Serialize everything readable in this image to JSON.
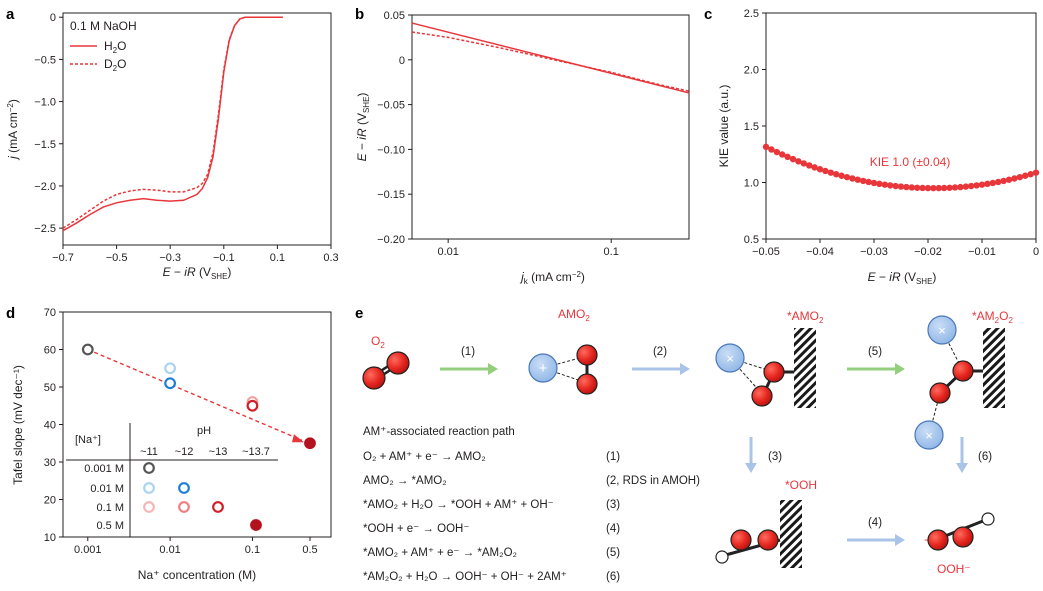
{
  "panel_letters": [
    "a",
    "b",
    "c",
    "d",
    "e"
  ],
  "colors": {
    "red": "#e8363a",
    "dark_red": "#b3121f",
    "blue_atom": "#a8c8ee",
    "green_arrow": "#93cf7c",
    "blue_arrow": "#a9c4e6"
  },
  "chart_data": [
    {
      "panel": "a",
      "type": "line",
      "xlabel": "E − iR (V_SHE)",
      "ylabel": "j (mA cm⁻²)",
      "xlim": [
        -0.7,
        0.3
      ],
      "ylim": [
        -2.7,
        0.05
      ],
      "xticks": [
        "−0.7",
        "−0.5",
        "−0.3",
        "−0.1",
        "0.1",
        "0.3"
      ],
      "yticks": [
        "0",
        "−0.5",
        "−1.0",
        "−1.5",
        "−2.0",
        "−2.5"
      ],
      "legend_title": "0.1 M NaOH",
      "series": [
        {
          "name": "H2O",
          "label_main": "H",
          "label_sub": "2",
          "label_end": "O",
          "style": "solid",
          "x": [
            -0.7,
            -0.65,
            -0.6,
            -0.55,
            -0.5,
            -0.45,
            -0.4,
            -0.35,
            -0.3,
            -0.25,
            -0.2,
            -0.18,
            -0.16,
            -0.14,
            -0.12,
            -0.1,
            -0.08,
            -0.06,
            -0.04,
            -0.02,
            0.0,
            0.12
          ],
          "y": [
            -2.53,
            -2.44,
            -2.34,
            -2.25,
            -2.2,
            -2.17,
            -2.15,
            -2.17,
            -2.18,
            -2.17,
            -2.1,
            -2.03,
            -1.9,
            -1.65,
            -1.2,
            -0.65,
            -0.28,
            -0.1,
            -0.02,
            0.0,
            0.0,
            0.0
          ]
        },
        {
          "name": "D2O",
          "label_main": "D",
          "label_sub": "2",
          "label_end": "O",
          "style": "dashed",
          "x": [
            -0.7,
            -0.65,
            -0.6,
            -0.55,
            -0.5,
            -0.45,
            -0.4,
            -0.35,
            -0.3,
            -0.25,
            -0.2,
            -0.18,
            -0.16,
            -0.14,
            -0.12,
            -0.1,
            -0.08,
            -0.06,
            -0.04,
            -0.02,
            0.0,
            0.12
          ],
          "y": [
            -2.5,
            -2.4,
            -2.29,
            -2.18,
            -2.1,
            -2.06,
            -2.04,
            -2.05,
            -2.07,
            -2.07,
            -2.02,
            -1.97,
            -1.86,
            -1.6,
            -1.15,
            -0.62,
            -0.27,
            -0.1,
            -0.02,
            0.0,
            0.0,
            0.0
          ]
        }
      ]
    },
    {
      "panel": "b",
      "type": "line",
      "xlabel": "j_k (mA cm⁻²)",
      "ylabel": "E − iR (V_SHE)",
      "xscale": "log",
      "xlim": [
        0.006,
        0.3
      ],
      "ylim": [
        -0.2,
        0.05
      ],
      "xticks": [
        "0.01",
        "0.1"
      ],
      "yticks": [
        "0.05",
        "0",
        "−0.05",
        "−0.10",
        "−0.15",
        "−0.20"
      ],
      "series": [
        {
          "name": "H2O",
          "style": "solid",
          "x": [
            0.006,
            0.3
          ],
          "y": [
            0.041,
            -0.037
          ]
        },
        {
          "name": "D2O",
          "style": "dashed",
          "x": [
            0.006,
            0.01,
            0.02,
            0.05,
            0.1,
            0.2,
            0.3
          ],
          "y": [
            0.031,
            0.025,
            0.014,
            -0.002,
            -0.014,
            -0.028,
            -0.035
          ]
        }
      ]
    },
    {
      "panel": "c",
      "type": "scatter",
      "xlabel": "E − iR (V_SHE)",
      "ylabel": "KIE value (a.u.)",
      "xlim": [
        -0.05,
        0.0
      ],
      "ylim": [
        0.5,
        2.5
      ],
      "xticks": [
        "−0.05",
        "−0.04",
        "−0.03",
        "−0.02",
        "−0.01",
        "0"
      ],
      "yticks": [
        "2.5",
        "2.0",
        "1.5",
        "1.0",
        "0.5"
      ],
      "annotation": "KIE 1.0 (±0.04)",
      "curve": "y = 0.95 + 380 * (x + 0.019)^2 (sampled every 0.001 V from −0.05 to 0)"
    },
    {
      "panel": "d",
      "type": "scatter",
      "xlabel": "Na⁺ concentration (M)",
      "ylabel": "Tafel slope (mV dec⁻¹)",
      "xscale": "log",
      "xlim": [
        0.0005,
        0.9
      ],
      "ylim": [
        10,
        70
      ],
      "xticks": [
        "0.001",
        "0.01",
        "0.1",
        "0.5"
      ],
      "yticks": [
        "70",
        "60",
        "50",
        "40",
        "30",
        "20",
        "10"
      ],
      "points": [
        {
          "x": 0.001,
          "y": 60,
          "color": "#555555",
          "filled": false
        },
        {
          "x": 0.01,
          "y": 55,
          "color": "#a9d3f3",
          "filled": false
        },
        {
          "x": 0.01,
          "y": 51,
          "color": "#1f7fd6",
          "filled": false
        },
        {
          "x": 0.1,
          "y": 46,
          "color": "#f0a3a3",
          "filled": false
        },
        {
          "x": 0.1,
          "y": 45,
          "color": "#d21e26",
          "filled": false
        },
        {
          "x": 0.5,
          "y": 35,
          "color": "#b3121f",
          "filled": true
        }
      ],
      "fit_line": {
        "x": [
          0.001,
          0.5
        ],
        "y": [
          60,
          35
        ]
      },
      "inset": {
        "row_header": "[Na⁺]",
        "col_title": "pH",
        "columns": [
          "~11",
          "~12",
          "~13",
          "~13.7"
        ],
        "rows": [
          "0.001 M",
          "0.01 M",
          "0.1 M",
          "0.5 M"
        ],
        "markers": [
          {
            "row": 0,
            "col": 0,
            "color": "#555555",
            "filled": false
          },
          {
            "row": 1,
            "col": 0,
            "color": "#a9d3f3",
            "filled": false
          },
          {
            "row": 1,
            "col": 1,
            "color": "#1f7fd6",
            "filled": false
          },
          {
            "row": 2,
            "col": 0,
            "color": "#f5b5b5",
            "filled": false
          },
          {
            "row": 2,
            "col": 1,
            "color": "#f07f7f",
            "filled": false
          },
          {
            "row": 2,
            "col": 2,
            "color": "#d21e26",
            "filled": false
          },
          {
            "row": 3,
            "col": 3,
            "color": "#b3121f",
            "filled": true
          }
        ]
      }
    }
  ],
  "panel_e": {
    "species_labels": [
      "O",
      "AMO",
      "*AMO",
      "*AM",
      "*OOH",
      "OOH⁻"
    ],
    "step_labels": [
      "(1)",
      "(2)",
      "(5)",
      "(3)",
      "(6)",
      "(4)"
    ],
    "path_title": "AM⁺-associated reaction path",
    "reactions": [
      {
        "eq": "O₂ + AM⁺ + e⁻ → AMO₂",
        "num": "(1)"
      },
      {
        "eq": "AMO₂ → *AMO₂",
        "num": "(2, RDS in AMOH)"
      },
      {
        "eq": "*AMO₂ + H₂O → *OOH + AM⁺ + OH⁻",
        "num": "(3)"
      },
      {
        "eq": "*OOH + e⁻ → OOH⁻",
        "num": "(4)"
      },
      {
        "eq": "*AMO₂ + AM⁺ + e⁻ → *AM₂O₂",
        "num": "(5)"
      },
      {
        "eq": "*AM₂O₂ + H₂O → OOH⁻ + OH⁻ + 2AM⁺",
        "num": "(6)"
      }
    ]
  }
}
